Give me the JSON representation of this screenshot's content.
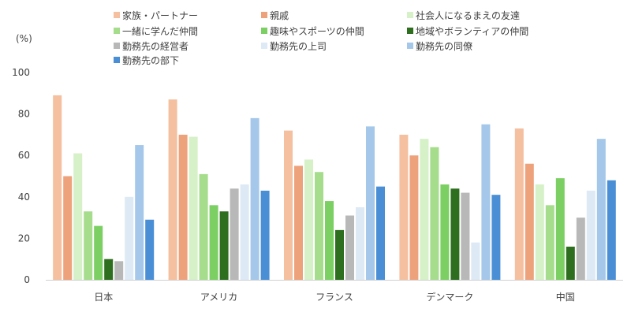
{
  "chart_data": {
    "type": "bar",
    "ylabel": "(%)",
    "ylim": [
      0,
      100
    ],
    "yticks": [
      0,
      20,
      40,
      60,
      80,
      100
    ],
    "grid": false,
    "legend_position": "top",
    "categories": [
      "日本",
      "アメリカ",
      "フランス",
      "デンマーク",
      "中国"
    ],
    "series": [
      {
        "name": "家族・パートナー",
        "color": "#f4c0a0",
        "values": [
          89,
          87,
          72,
          70,
          73
        ]
      },
      {
        "name": "親戚",
        "color": "#eda27c",
        "values": [
          50,
          70,
          55,
          60,
          56
        ]
      },
      {
        "name": "社会人になるまえの友達",
        "color": "#d6f0c8",
        "values": [
          61,
          69,
          58,
          68,
          46
        ]
      },
      {
        "name": "一緒に学んだ仲間",
        "color": "#a6dd8c",
        "values": [
          33,
          51,
          52,
          64,
          36
        ]
      },
      {
        "name": "趣味やスポーツの仲間",
        "color": "#7ccf63",
        "values": [
          26,
          36,
          38,
          46,
          49
        ]
      },
      {
        "name": "地域やボランティアの仲間",
        "color": "#2d6e1f",
        "values": [
          10,
          33,
          24,
          44,
          16
        ]
      },
      {
        "name": "勤務先の経営者",
        "color": "#b8b8b8",
        "values": [
          9,
          44,
          31,
          42,
          30
        ]
      },
      {
        "name": "勤務先の上司",
        "color": "#dde9f5",
        "values": [
          40,
          46,
          35,
          18,
          43
        ]
      },
      {
        "name": "勤務先の同僚",
        "color": "#a5c8ea",
        "values": [
          65,
          78,
          74,
          75,
          68
        ]
      },
      {
        "name": "勤務先の部下",
        "color": "#4a8fd6",
        "values": [
          29,
          43,
          45,
          41,
          48
        ]
      }
    ]
  }
}
